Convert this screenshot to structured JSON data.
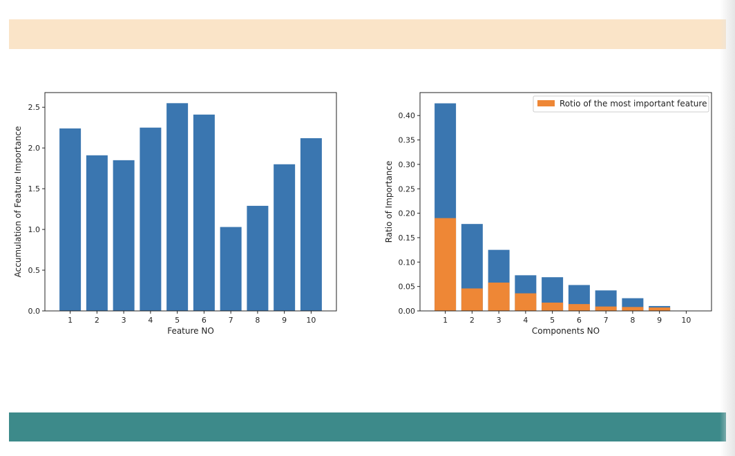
{
  "colors": {
    "top_band": "#fae4c8",
    "bottom_band": "#3d8a8a",
    "bar_blue": "#3a76b0",
    "bar_orange": "#ee8736"
  },
  "chart_data": [
    {
      "type": "bar",
      "title": "",
      "xlabel": "Feature NO",
      "ylabel": "Accumulation of Feature Importance",
      "categories": [
        "1",
        "2",
        "3",
        "4",
        "5",
        "6",
        "7",
        "8",
        "9",
        "10"
      ],
      "values": [
        2.24,
        1.91,
        1.85,
        2.25,
        2.55,
        2.41,
        1.03,
        1.29,
        1.8,
        2.12
      ],
      "ylim": [
        0,
        2.68
      ],
      "yticks": [
        "0.0",
        "0.5",
        "1.0",
        "1.5",
        "2.0",
        "2.5"
      ],
      "grid": false,
      "legend": false
    },
    {
      "type": "bar",
      "title": "",
      "xlabel": "Components NO",
      "ylabel": "Ratio of Importance",
      "categories": [
        "1",
        "2",
        "3",
        "4",
        "5",
        "6",
        "7",
        "8",
        "9",
        "10"
      ],
      "series": [
        {
          "values": [
            0.425,
            0.178,
            0.125,
            0.073,
            0.069,
            0.053,
            0.042,
            0.026,
            0.01,
            0.0
          ]
        },
        {
          "name": "Rotio of the most important feature",
          "values": [
            0.19,
            0.046,
            0.058,
            0.036,
            0.017,
            0.014,
            0.009,
            0.008,
            0.007,
            0.0
          ]
        }
      ],
      "ylim": [
        0,
        0.447
      ],
      "yticks": [
        "0.00",
        "0.05",
        "0.10",
        "0.15",
        "0.20",
        "0.25",
        "0.30",
        "0.35",
        "0.40"
      ],
      "grid": false,
      "legend": "top-right"
    }
  ]
}
